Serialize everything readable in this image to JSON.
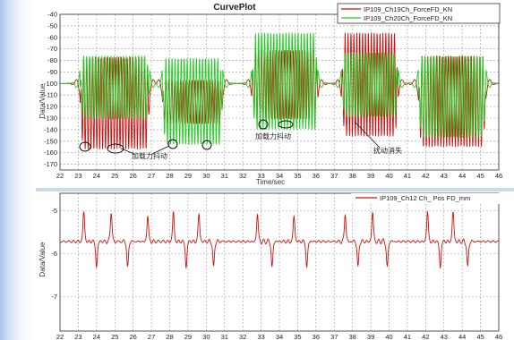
{
  "colors": {
    "red": "#cc1111",
    "green": "#22cc22",
    "grid": "#9a9a9a",
    "annotation": "#222222"
  },
  "chart_data": [
    {
      "type": "line",
      "title": "CurvePlot",
      "xlabel": "Time/sec",
      "ylabel": "Data/Value",
      "xlim": [
        22,
        46
      ],
      "ylim": [
        -175,
        -40
      ],
      "x_ticks": [
        "22",
        "23",
        "24",
        "25",
        "26",
        "27",
        "28",
        "29",
        "30",
        "31",
        "32",
        "33",
        "34",
        "35",
        "36",
        "37",
        "38",
        "39",
        "40",
        "41",
        "42",
        "43",
        "44",
        "45",
        "46"
      ],
      "y_ticks": [
        "-40",
        "-50",
        "-60",
        "-70",
        "-80",
        "-90",
        "-100",
        "-110",
        "-120",
        "-130",
        "-140",
        "-150",
        "-160",
        "-170"
      ],
      "grid": true,
      "legend_position": "top-right",
      "series": [
        {
          "name": "IP109_Ch19Ch_ForceFD_KN",
          "color": "red"
        },
        {
          "name": "IP109_Ch20Ch_ForceFD_KN",
          "color": "green"
        }
      ],
      "baseline": -100,
      "segments": [
        {
          "x_start": 23.1,
          "x_end": 26.9,
          "red_range": [
            -157,
            -77
          ],
          "green_range": [
            -131,
            -76
          ]
        },
        {
          "x_start": 27.6,
          "x_end": 30.9,
          "red_range": [
            -135,
            -97
          ],
          "green_range": [
            -153,
            -78
          ]
        },
        {
          "x_start": 32.5,
          "x_end": 36.1,
          "red_range": [
            -131,
            -71
          ],
          "green_range": [
            -140,
            -56
          ]
        },
        {
          "x_start": 37.4,
          "x_end": 40.5,
          "red_range": [
            -146,
            -56
          ],
          "green_range": [
            -129,
            -73
          ]
        },
        {
          "x_start": 41.6,
          "x_end": 45.3,
          "red_range": [
            -155,
            -76
          ],
          "green_range": [
            -147,
            -76
          ]
        }
      ],
      "annotations": [
        "加载力抖动",
        "加载力抖动",
        "扰动消失"
      ]
    },
    {
      "type": "line",
      "xlabel": "",
      "ylabel": "Data/Value",
      "xlim": [
        22,
        46
      ],
      "ylim": [
        -7.8,
        -4.6
      ],
      "x_ticks": [
        "22",
        "23",
        "24",
        "25",
        "26",
        "27",
        "28",
        "29",
        "30",
        "31",
        "32",
        "33",
        "34",
        "35",
        "36",
        "37",
        "38",
        "39",
        "40",
        "41",
        "42",
        "43",
        "44",
        "45",
        "46"
      ],
      "y_ticks": [
        "-5",
        "-6",
        "-7"
      ],
      "grid": true,
      "legend_position": "top-right",
      "series": [
        {
          "name": "IP109_Ch12 Ch_   Pos FD_mm",
          "color": "red"
        }
      ],
      "baseline": -5.72,
      "peaks_up": [
        {
          "x": 23.3,
          "y": -5.05
        },
        {
          "x": 24.8,
          "y": -5.05
        },
        {
          "x": 26.8,
          "y": -5.15
        },
        {
          "x": 28.2,
          "y": -5.05
        },
        {
          "x": 29.6,
          "y": -5.1
        },
        {
          "x": 32.8,
          "y": -5.1
        },
        {
          "x": 34.8,
          "y": -5.15
        },
        {
          "x": 37.6,
          "y": -5.1
        },
        {
          "x": 39.1,
          "y": -5.05
        },
        {
          "x": 42.1,
          "y": -5.05
        },
        {
          "x": 43.5,
          "y": -5.05
        }
      ],
      "peaks_down": [
        {
          "x": 24.0,
          "y": -6.3
        },
        {
          "x": 25.7,
          "y": -6.3
        },
        {
          "x": 28.9,
          "y": -6.3
        },
        {
          "x": 30.4,
          "y": -6.3
        },
        {
          "x": 33.6,
          "y": -6.3
        },
        {
          "x": 35.5,
          "y": -6.3
        },
        {
          "x": 38.3,
          "y": -6.3
        },
        {
          "x": 39.9,
          "y": -6.3
        },
        {
          "x": 42.8,
          "y": -6.3
        },
        {
          "x": 44.3,
          "y": -6.3
        }
      ]
    }
  ]
}
